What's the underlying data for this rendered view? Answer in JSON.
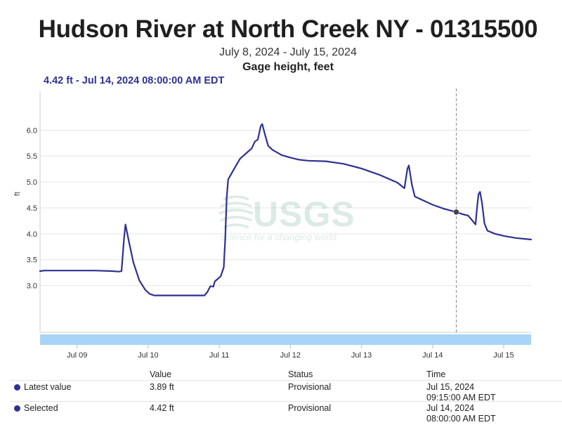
{
  "header": {
    "title": "Hudson River at North Creek NY - 01315500",
    "date_range": "July 8, 2024 - July 15, 2024",
    "parameter": "Gage height, feet",
    "readout": "4.42 ft - Jul 14, 2024 08:00:00 AM EDT"
  },
  "watermark": {
    "text": "USGS",
    "tagline": "science for a changing world"
  },
  "colors": {
    "series": "#2e3192",
    "navigator": "#a8d4f7",
    "grid": "#e6e6e6"
  },
  "chart_data": {
    "type": "line",
    "ylabel": "ft",
    "yticks": [
      3.0,
      3.5,
      4.0,
      4.5,
      5.0,
      5.5,
      6.0
    ],
    "ylim": [
      2.1,
      6.75
    ],
    "x_start": "2024-07-08 11:30",
    "x_end": "2024-07-15 09:15",
    "xticks": [
      "Jul 09",
      "Jul 10",
      "Jul 11",
      "Jul 12",
      "Jul 13",
      "Jul 14",
      "Jul 15"
    ],
    "xtick_times": [
      "2024-07-09 00:00",
      "2024-07-10 00:00",
      "2024-07-11 00:00",
      "2024-07-12 00:00",
      "2024-07-13 00:00",
      "2024-07-14 00:00",
      "2024-07-15 00:00"
    ],
    "grid": true,
    "selected": {
      "time": "2024-07-14 08:00",
      "value": 4.42
    },
    "series": [
      {
        "points": [
          [
            "2024-07-08 11:30",
            3.28
          ],
          [
            "2024-07-08 13:00",
            3.29
          ],
          [
            "2024-07-08 18:00",
            3.29
          ],
          [
            "2024-07-09 00:00",
            3.29
          ],
          [
            "2024-07-09 06:00",
            3.29
          ],
          [
            "2024-07-09 12:00",
            3.28
          ],
          [
            "2024-07-09 14:00",
            3.27
          ],
          [
            "2024-07-09 15:00",
            3.28
          ],
          [
            "2024-07-09 15:50",
            3.9
          ],
          [
            "2024-07-09 16:20",
            4.18
          ],
          [
            "2024-07-09 17:30",
            3.85
          ],
          [
            "2024-07-09 19:00",
            3.45
          ],
          [
            "2024-07-09 21:00",
            3.1
          ],
          [
            "2024-07-09 23:00",
            2.92
          ],
          [
            "2024-07-10 00:30",
            2.84
          ],
          [
            "2024-07-10 02:00",
            2.81
          ],
          [
            "2024-07-10 06:00",
            2.81
          ],
          [
            "2024-07-10 12:00",
            2.81
          ],
          [
            "2024-07-10 19:00",
            2.81
          ],
          [
            "2024-07-10 20:00",
            2.88
          ],
          [
            "2024-07-10 21:00",
            2.99
          ],
          [
            "2024-07-10 22:00",
            2.98
          ],
          [
            "2024-07-10 22:30",
            3.08
          ],
          [
            "2024-07-10 23:30",
            3.13
          ],
          [
            "2024-07-11 00:30",
            3.18
          ],
          [
            "2024-07-11 01:30",
            3.35
          ],
          [
            "2024-07-11 02:00",
            3.9
          ],
          [
            "2024-07-11 02:30",
            4.7
          ],
          [
            "2024-07-11 03:00",
            5.05
          ],
          [
            "2024-07-11 05:00",
            5.25
          ],
          [
            "2024-07-11 07:00",
            5.45
          ],
          [
            "2024-07-11 09:00",
            5.55
          ],
          [
            "2024-07-11 11:00",
            5.65
          ],
          [
            "2024-07-11 12:00",
            5.78
          ],
          [
            "2024-07-11 13:00",
            5.82
          ],
          [
            "2024-07-11 14:00",
            6.08
          ],
          [
            "2024-07-11 14:30",
            6.12
          ],
          [
            "2024-07-11 15:30",
            5.9
          ],
          [
            "2024-07-11 16:30",
            5.7
          ],
          [
            "2024-07-11 18:00",
            5.62
          ],
          [
            "2024-07-11 21:00",
            5.52
          ],
          [
            "2024-07-12 00:00",
            5.47
          ],
          [
            "2024-07-12 03:00",
            5.43
          ],
          [
            "2024-07-12 06:00",
            5.41
          ],
          [
            "2024-07-12 12:00",
            5.4
          ],
          [
            "2024-07-12 18:00",
            5.35
          ],
          [
            "2024-07-13 00:00",
            5.26
          ],
          [
            "2024-07-13 06:00",
            5.14
          ],
          [
            "2024-07-13 12:00",
            4.99
          ],
          [
            "2024-07-13 13:00",
            4.95
          ],
          [
            "2024-07-13 14:00",
            4.9
          ],
          [
            "2024-07-13 14:30",
            4.88
          ],
          [
            "2024-07-13 15:30",
            5.25
          ],
          [
            "2024-07-13 16:00",
            5.32
          ],
          [
            "2024-07-13 17:00",
            4.95
          ],
          [
            "2024-07-13 18:00",
            4.72
          ],
          [
            "2024-07-13 21:00",
            4.64
          ],
          [
            "2024-07-14 00:00",
            4.56
          ],
          [
            "2024-07-14 04:00",
            4.48
          ],
          [
            "2024-07-14 08:00",
            4.42
          ],
          [
            "2024-07-14 10:00",
            4.38
          ],
          [
            "2024-07-14 12:00",
            4.35
          ],
          [
            "2024-07-14 13:30",
            4.25
          ],
          [
            "2024-07-14 14:30",
            4.18
          ],
          [
            "2024-07-14 15:00",
            4.5
          ],
          [
            "2024-07-14 15:30",
            4.76
          ],
          [
            "2024-07-14 16:00",
            4.81
          ],
          [
            "2024-07-14 16:40",
            4.6
          ],
          [
            "2024-07-14 17:30",
            4.2
          ],
          [
            "2024-07-14 18:30",
            4.06
          ],
          [
            "2024-07-14 21:00",
            4.0
          ],
          [
            "2024-07-15 00:00",
            3.96
          ],
          [
            "2024-07-15 04:00",
            3.92
          ],
          [
            "2024-07-15 09:15",
            3.89
          ]
        ]
      }
    ]
  },
  "table": {
    "headers": {
      "value": "Value",
      "status": "Status",
      "time": "Time"
    },
    "rows": [
      {
        "label": "Latest value",
        "value": "3.89 ft",
        "status": "Provisional",
        "date": "Jul 15, 2024",
        "time": "09:15:00 AM EDT"
      },
      {
        "label": "Selected",
        "value": "4.42 ft",
        "status": "Provisional",
        "date": "Jul 14, 2024",
        "time": "08:00:00 AM EDT"
      }
    ]
  }
}
